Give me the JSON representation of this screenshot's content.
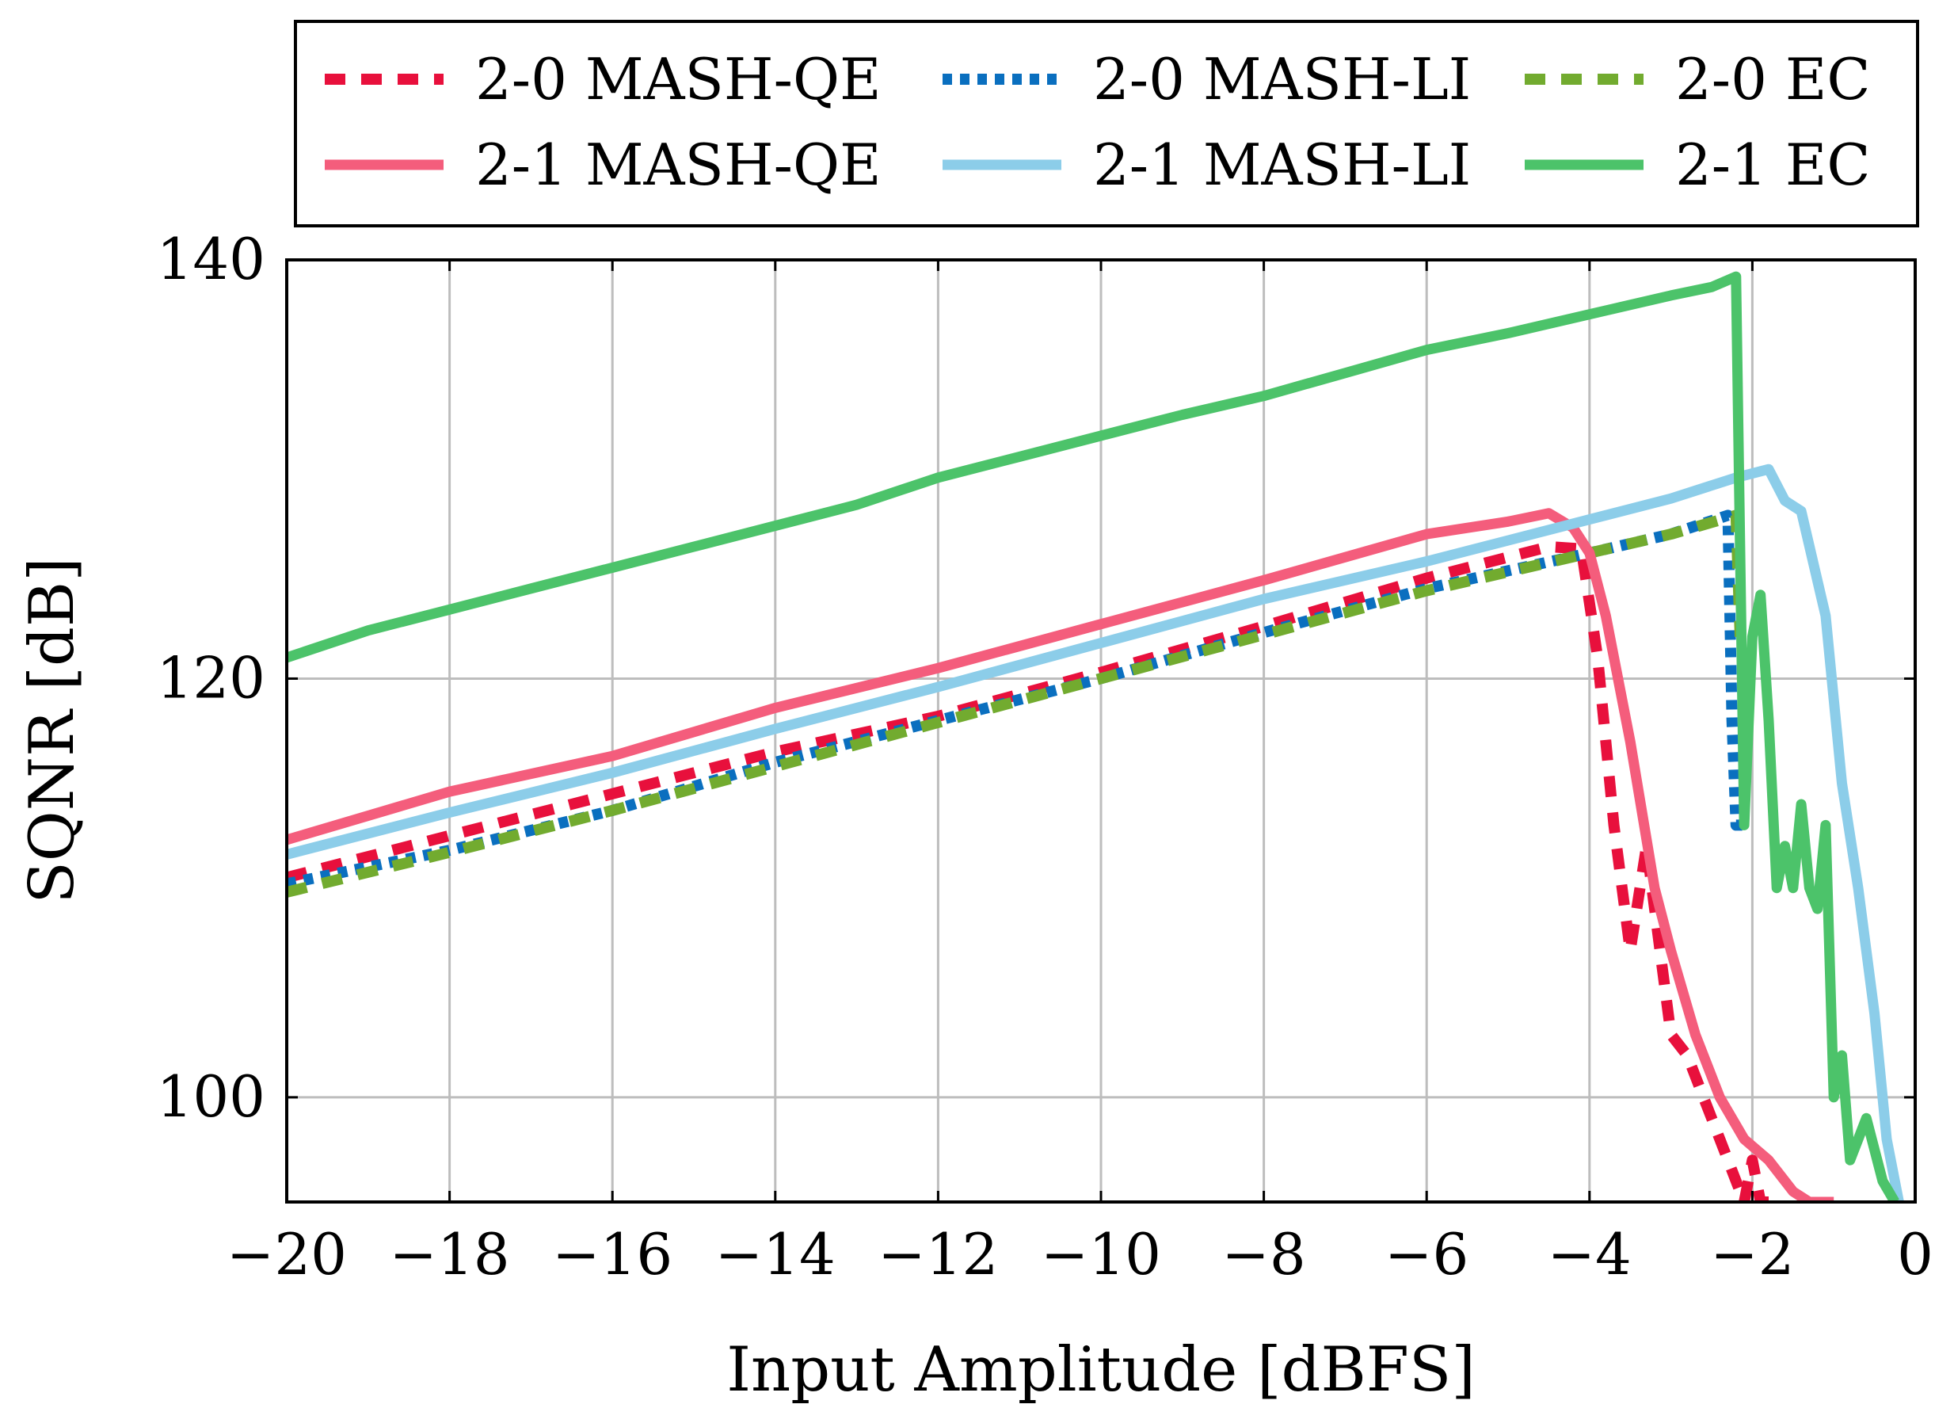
{
  "chart_data": {
    "type": "line",
    "title": "",
    "xlabel": "Input Amplitude [dBFS]",
    "ylabel": "SQNR [dB]",
    "xlim": [
      -20,
      0
    ],
    "ylim": [
      95,
      140
    ],
    "x_ticks": [
      -20,
      -18,
      -16,
      -14,
      -12,
      -10,
      -8,
      -6,
      -4,
      -2,
      0
    ],
    "x_tick_labels": [
      "−20",
      "−18",
      "−16",
      "−14",
      "−12",
      "−10",
      "−8",
      "−6",
      "−4",
      "−2",
      "0"
    ],
    "y_ticks": [
      100,
      120,
      140
    ],
    "y_tick_labels": [
      "100",
      "120",
      "140"
    ],
    "grid": true,
    "legend_position": "top (above plot, 3 columns)",
    "series": [
      {
        "name": "2-0 MASH-QE",
        "color": "#e8103c",
        "style": "dashed",
        "x": [
          -20,
          -18,
          -16,
          -14,
          -12,
          -10,
          -8,
          -6,
          -4.5,
          -4.1,
          -3.9,
          -3.7,
          -3.5,
          -3.3,
          -3.2,
          -3.0,
          -2.8,
          -2.6,
          -2.4,
          -2.2,
          -2.1,
          -2.0,
          -1.9,
          -1.8
        ],
        "y": [
          110.5,
          112.5,
          114.5,
          116.5,
          118.2,
          120.3,
          122.5,
          124.8,
          126.3,
          126.2,
          121,
          113,
          107,
          112,
          109,
          103,
          102,
          100,
          98,
          96,
          95,
          97,
          95,
          95
        ]
      },
      {
        "name": "2-0 MASH-LI",
        "color": "#0a6fbf",
        "style": "dotted",
        "x": [
          -20,
          -18,
          -16,
          -14,
          -12,
          -10,
          -8,
          -6,
          -4,
          -3,
          -2.3,
          -2.25,
          -2.2,
          -2.1
        ],
        "y": [
          110.2,
          111.8,
          113.7,
          116.0,
          118.0,
          120.0,
          122.2,
          124.3,
          126.0,
          126.9,
          127.8,
          118,
          113,
          113
        ]
      },
      {
        "name": "2-0 EC",
        "color": "#72ab2f",
        "style": "dashed",
        "x": [
          -20,
          -18,
          -16,
          -14,
          -12,
          -10,
          -8,
          -6,
          -4,
          -3,
          -2.2,
          -2.15
        ],
        "y": [
          109.8,
          111.7,
          113.7,
          115.8,
          117.9,
          120.0,
          122.1,
          124.2,
          126.0,
          126.9,
          127.8,
          122
        ]
      },
      {
        "name": "2-1 MASH-QE",
        "color": "#f45d7c",
        "style": "solid",
        "x": [
          -20,
          -18,
          -16,
          -14,
          -12,
          -10,
          -8,
          -6,
          -5,
          -4.5,
          -4.2,
          -4.0,
          -3.8,
          -3.5,
          -3.2,
          -3.0,
          -2.7,
          -2.4,
          -2.1,
          -1.8,
          -1.5,
          -1.3,
          -1.0
        ],
        "y": [
          112.3,
          114.6,
          116.3,
          118.6,
          120.5,
          122.6,
          124.7,
          126.9,
          127.5,
          127.9,
          127.2,
          126,
          123,
          117,
          110,
          107,
          103,
          100,
          98,
          97,
          95.5,
          95,
          95
        ]
      },
      {
        "name": "2-1 MASH-LI",
        "color": "#8ccde9",
        "style": "solid",
        "x": [
          -20,
          -18,
          -16,
          -14,
          -12,
          -10,
          -8,
          -6,
          -4,
          -3,
          -2.2,
          -1.8,
          -1.6,
          -1.4,
          -1.1,
          -0.9,
          -0.7,
          -0.5,
          -0.35,
          -0.2
        ],
        "y": [
          111.6,
          113.6,
          115.5,
          117.6,
          119.6,
          121.7,
          123.8,
          125.6,
          127.6,
          128.6,
          129.6,
          130,
          128.5,
          128,
          123,
          115,
          110,
          104,
          98,
          95
        ]
      },
      {
        "name": "2-1 EC",
        "color": "#4cc36a",
        "style": "solid",
        "x": [
          -20,
          -19,
          -18,
          -17,
          -16,
          -15,
          -14,
          -13,
          -12,
          -11,
          -10,
          -9,
          -8,
          -7,
          -6,
          -5,
          -4,
          -3,
          -2.5,
          -2.2,
          -2.1,
          -2.0,
          -1.9,
          -1.8,
          -1.7,
          -1.6,
          -1.5,
          -1.4,
          -1.3,
          -1.2,
          -1.1,
          -1.0,
          -0.9,
          -0.8,
          -0.6,
          -0.4,
          -0.25
        ],
        "y": [
          121,
          122.3,
          123.3,
          124.3,
          125.3,
          126.3,
          127.3,
          128.3,
          129.6,
          130.6,
          131.6,
          132.6,
          133.5,
          134.6,
          135.7,
          136.5,
          137.4,
          138.3,
          138.7,
          139.2,
          113,
          122,
          124,
          118,
          110,
          112,
          110,
          114,
          110,
          109,
          113,
          100,
          102,
          97,
          99,
          96,
          95
        ]
      }
    ]
  }
}
